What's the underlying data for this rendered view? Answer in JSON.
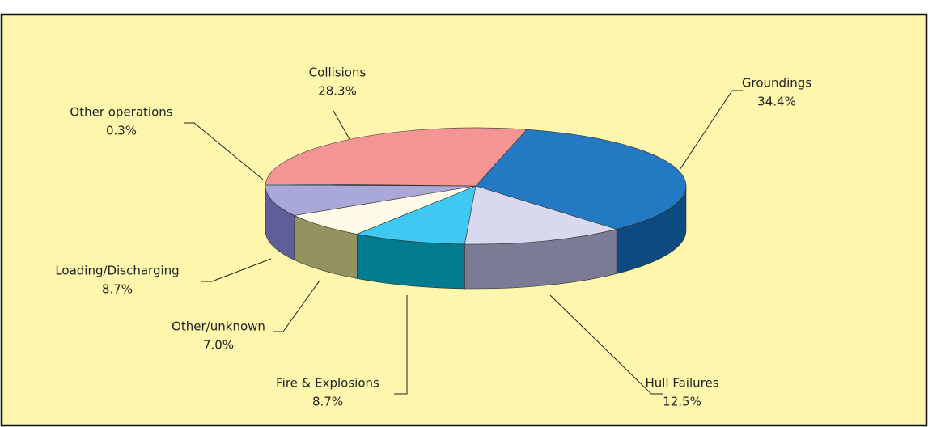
{
  "chart_data": {
    "type": "pie",
    "categories": [
      "Groundings",
      "Hull Failures",
      "Fire & Explosions",
      "Other/unknown",
      "Loading/Discharging",
      "Other operations",
      "Collisions"
    ],
    "values": [
      34.4,
      12.5,
      8.7,
      7.0,
      8.7,
      0.3,
      28.3
    ],
    "value_labels": [
      "34.4%",
      "12.5%",
      "8.7%",
      "7.0%",
      "8.7%",
      "0.3%",
      "28.3%"
    ],
    "colors": [
      "#2379c2",
      "#d8d8ee",
      "#3fc8f2",
      "#fffbe8",
      "#a9a9d9",
      "#b8b8c8",
      "#f59593"
    ],
    "side_colors": [
      "#0d4a80",
      "#7b7b95",
      "#007b90",
      "#939360",
      "#5e5e99",
      "#6a6a80",
      "#b06060"
    ]
  }
}
